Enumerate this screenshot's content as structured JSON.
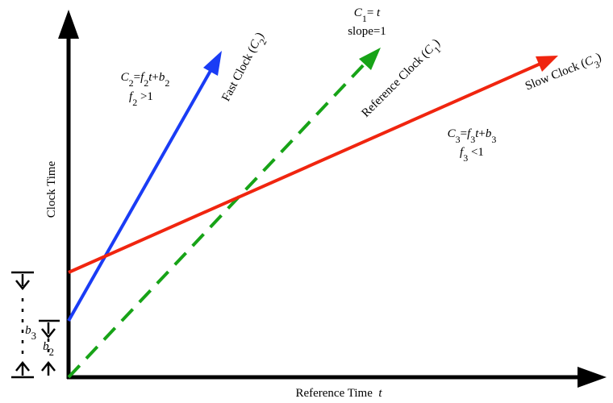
{
  "annotations": {
    "fast_clock_label": [
      {
        "text": "Fast Clock (",
        "style": "normal"
      },
      {
        "text": "C",
        "style": "italic"
      },
      {
        "text": "2",
        "style": "sub"
      },
      {
        "text": ")",
        "style": "normal"
      }
    ],
    "reference_clock_label": [
      {
        "text": "Reference Clock (",
        "style": "normal"
      },
      {
        "text": "C",
        "style": "italic"
      },
      {
        "text": "1",
        "style": "sub"
      },
      {
        "text": ")",
        "style": "normal"
      }
    ],
    "slow_clock_label": [
      {
        "text": "Slow Clock (",
        "style": "normal"
      },
      {
        "text": "C",
        "style": "italic"
      },
      {
        "text": "3",
        "style": "sub"
      },
      {
        "text": ")",
        "style": "normal"
      }
    ],
    "c1_equation": [
      {
        "text": "C",
        "style": "italic"
      },
      {
        "text": "1",
        "style": "sub"
      },
      {
        "text": "= ",
        "style": "normal"
      },
      {
        "text": "t",
        "style": "italic"
      }
    ],
    "c1_slope": [
      {
        "text": "slope=1",
        "style": "normal"
      }
    ],
    "c2_equation": [
      {
        "text": "C",
        "style": "italic"
      },
      {
        "text": "2",
        "style": "sub"
      },
      {
        "text": "=",
        "style": "normal"
      },
      {
        "text": "f",
        "style": "italic"
      },
      {
        "text": "2",
        "style": "sub"
      },
      {
        "text": "t",
        "style": "italic"
      },
      {
        "text": "+",
        "style": "normal"
      },
      {
        "text": "b",
        "style": "italic"
      },
      {
        "text": "2",
        "style": "sub"
      }
    ],
    "c2_condition": [
      {
        "text": "f",
        "style": "italic"
      },
      {
        "text": "2",
        "style": "sub"
      },
      {
        "text": " >1",
        "style": "normal"
      }
    ],
    "c3_equation": [
      {
        "text": "C",
        "style": "italic"
      },
      {
        "text": "3",
        "style": "sub"
      },
      {
        "text": "=",
        "style": "normal"
      },
      {
        "text": "f",
        "style": "italic"
      },
      {
        "text": "3",
        "style": "sub"
      },
      {
        "text": "t",
        "style": "italic"
      },
      {
        "text": "+",
        "style": "normal"
      },
      {
        "text": "b",
        "style": "italic"
      },
      {
        "text": "3",
        "style": "sub"
      }
    ],
    "c3_condition": [
      {
        "text": "f",
        "style": "italic"
      },
      {
        "text": "3",
        "style": "sub"
      },
      {
        "text": " <1",
        "style": "normal"
      }
    ],
    "y_axis_label": [
      {
        "text": "Clock Time",
        "style": "normal"
      }
    ],
    "x_axis_label": [
      {
        "text": "Reference Time  ",
        "style": "normal"
      },
      {
        "text": "t",
        "style": "italic"
      }
    ],
    "b3_label": [
      {
        "text": "b",
        "style": "italic"
      },
      {
        "text": "3",
        "style": "sub"
      }
    ],
    "b2_label": [
      {
        "text": "b",
        "style": "italic"
      },
      {
        "text": "2",
        "style": "sub"
      }
    ]
  }
}
